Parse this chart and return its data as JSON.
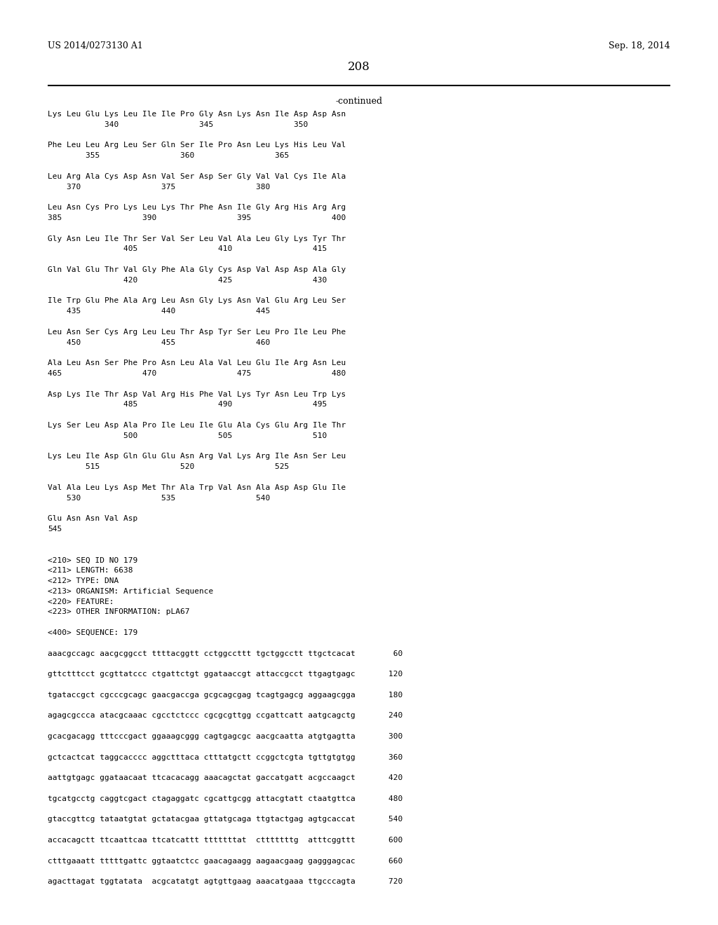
{
  "header_left": "US 2014/0273130 A1",
  "header_right": "Sep. 18, 2014",
  "page_number": "208",
  "continued_label": "-continued",
  "background_color": "#ffffff",
  "text_color": "#000000",
  "header_fontsize": 9,
  "page_num_fontsize": 12,
  "continued_fontsize": 9,
  "mono_font_size": 8.0,
  "sequence_lines": [
    "Lys Leu Glu Lys Leu Ile Ile Pro Gly Asn Lys Asn Ile Asp Asp Asn",
    "            340                 345                 350",
    "",
    "Phe Leu Leu Arg Leu Ser Gln Ser Ile Pro Asn Leu Lys His Leu Val",
    "        355                 360                 365",
    "",
    "Leu Arg Ala Cys Asp Asn Val Ser Asp Ser Gly Val Val Cys Ile Ala",
    "    370                 375                 380",
    "",
    "Leu Asn Cys Pro Lys Leu Lys Thr Phe Asn Ile Gly Arg His Arg Arg",
    "385                 390                 395                 400",
    "",
    "Gly Asn Leu Ile Thr Ser Val Ser Leu Val Ala Leu Gly Lys Tyr Thr",
    "                405                 410                 415",
    "",
    "Gln Val Glu Thr Val Gly Phe Ala Gly Cys Asp Val Asp Asp Ala Gly",
    "                420                 425                 430",
    "",
    "Ile Trp Glu Phe Ala Arg Leu Asn Gly Lys Asn Val Glu Arg Leu Ser",
    "    435                 440                 445",
    "",
    "Leu Asn Ser Cys Arg Leu Leu Thr Asp Tyr Ser Leu Pro Ile Leu Phe",
    "    450                 455                 460",
    "",
    "Ala Leu Asn Ser Phe Pro Asn Leu Ala Val Leu Glu Ile Arg Asn Leu",
    "465                 470                 475                 480",
    "",
    "Asp Lys Ile Thr Asp Val Arg His Phe Val Lys Tyr Asn Leu Trp Lys",
    "                485                 490                 495",
    "",
    "Lys Ser Leu Asp Ala Pro Ile Leu Ile Glu Ala Cys Glu Arg Ile Thr",
    "                500                 505                 510",
    "",
    "Lys Leu Ile Asp Gln Glu Glu Asn Arg Val Lys Arg Ile Asn Ser Leu",
    "        515                 520                 525",
    "",
    "Val Ala Leu Lys Asp Met Thr Ala Trp Val Asn Ala Asp Asp Glu Ile",
    "    530                 535                 540",
    "",
    "Glu Asn Asn Val Asp",
    "545",
    "",
    "",
    "<210> SEQ ID NO 179",
    "<211> LENGTH: 6638",
    "<212> TYPE: DNA",
    "<213> ORGANISM: Artificial Sequence",
    "<220> FEATURE:",
    "<223> OTHER INFORMATION: pLA67",
    "",
    "<400> SEQUENCE: 179",
    "",
    "aaacgccagc aacgcggcct ttttacggtt cctggccttt tgctggcctt ttgctcacat        60",
    "",
    "gttctttcct gcgttatccc ctgattctgt ggataaccgt attaccgcct ttgagtgagc       120",
    "",
    "tgataccgct cgcccgcagc gaacgaccga gcgcagcgag tcagtgagcg aggaagcgga       180",
    "",
    "agagcgccca atacgcaaac cgcctctccc cgcgcgttgg ccgattcatt aatgcagctg       240",
    "",
    "gcacgacagg tttcccgact ggaaagcggg cagtgagcgc aacgcaatta atgtgagtta       300",
    "",
    "gctcactcat taggcacccc aggctttaca ctttatgctt ccggctcgta tgttgtgtgg       360",
    "",
    "aattgtgagc ggataacaat ttcacacagg aaacagctat gaccatgatt acgccaagct       420",
    "",
    "tgcatgcctg caggtcgact ctagaggatc cgcattgcgg attacgtatt ctaatgttca       480",
    "",
    "gtaccgttcg tataatgtat gctatacgaa gttatgcaga ttgtactgag agtgcaccat       540",
    "",
    "accacagctt ttcaattcaa ttcatcattt tttttttat  ctttttttg  atttcggttt       600",
    "",
    "ctttgaaatt tttttgattc ggtaatctcc gaacagaagg aagaacgaag gagggagcac       660",
    "",
    "agacttagat tggtatata  acgcatatgt agtgttgaag aaacatgaaa ttgcccagta       720"
  ]
}
